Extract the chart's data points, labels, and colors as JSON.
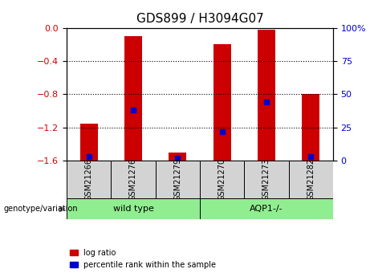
{
  "title": "GDS899 / H3094G07",
  "samples": [
    "GSM21266",
    "GSM21276",
    "GSM21279",
    "GSM21270",
    "GSM21273",
    "GSM21282"
  ],
  "log_ratios": [
    -1.15,
    -0.1,
    -1.5,
    -0.2,
    -0.02,
    -0.8
  ],
  "percentile_ranks": [
    3,
    38,
    2,
    22,
    44,
    3
  ],
  "groups": [
    "wild type",
    "wild type",
    "wild type",
    "AQP1-/-",
    "AQP1-/-",
    "AQP1-/-"
  ],
  "bar_bottom": -1.6,
  "ylim_left": [
    -1.6,
    0
  ],
  "ylim_right": [
    0,
    100
  ],
  "bar_color": "#CC0000",
  "dot_color": "#0000CC",
  "grid_color": "#000000",
  "group_colors": {
    "wild type": "#90EE90",
    "AQP1-/-": "#90EE90"
  },
  "label_color_left": "#CC0000",
  "label_color_right": "#0000CC",
  "yticks_left": [
    -1.6,
    -1.2,
    -0.8,
    -0.4,
    0
  ],
  "yticks_right": [
    0,
    25,
    50,
    75,
    100
  ],
  "bg_color": "#FFFFFF",
  "plot_bg": "#FFFFFF",
  "legend_red": "log ratio",
  "legend_blue": "percentile rank within the sample",
  "genotype_label": "genotype/variation"
}
